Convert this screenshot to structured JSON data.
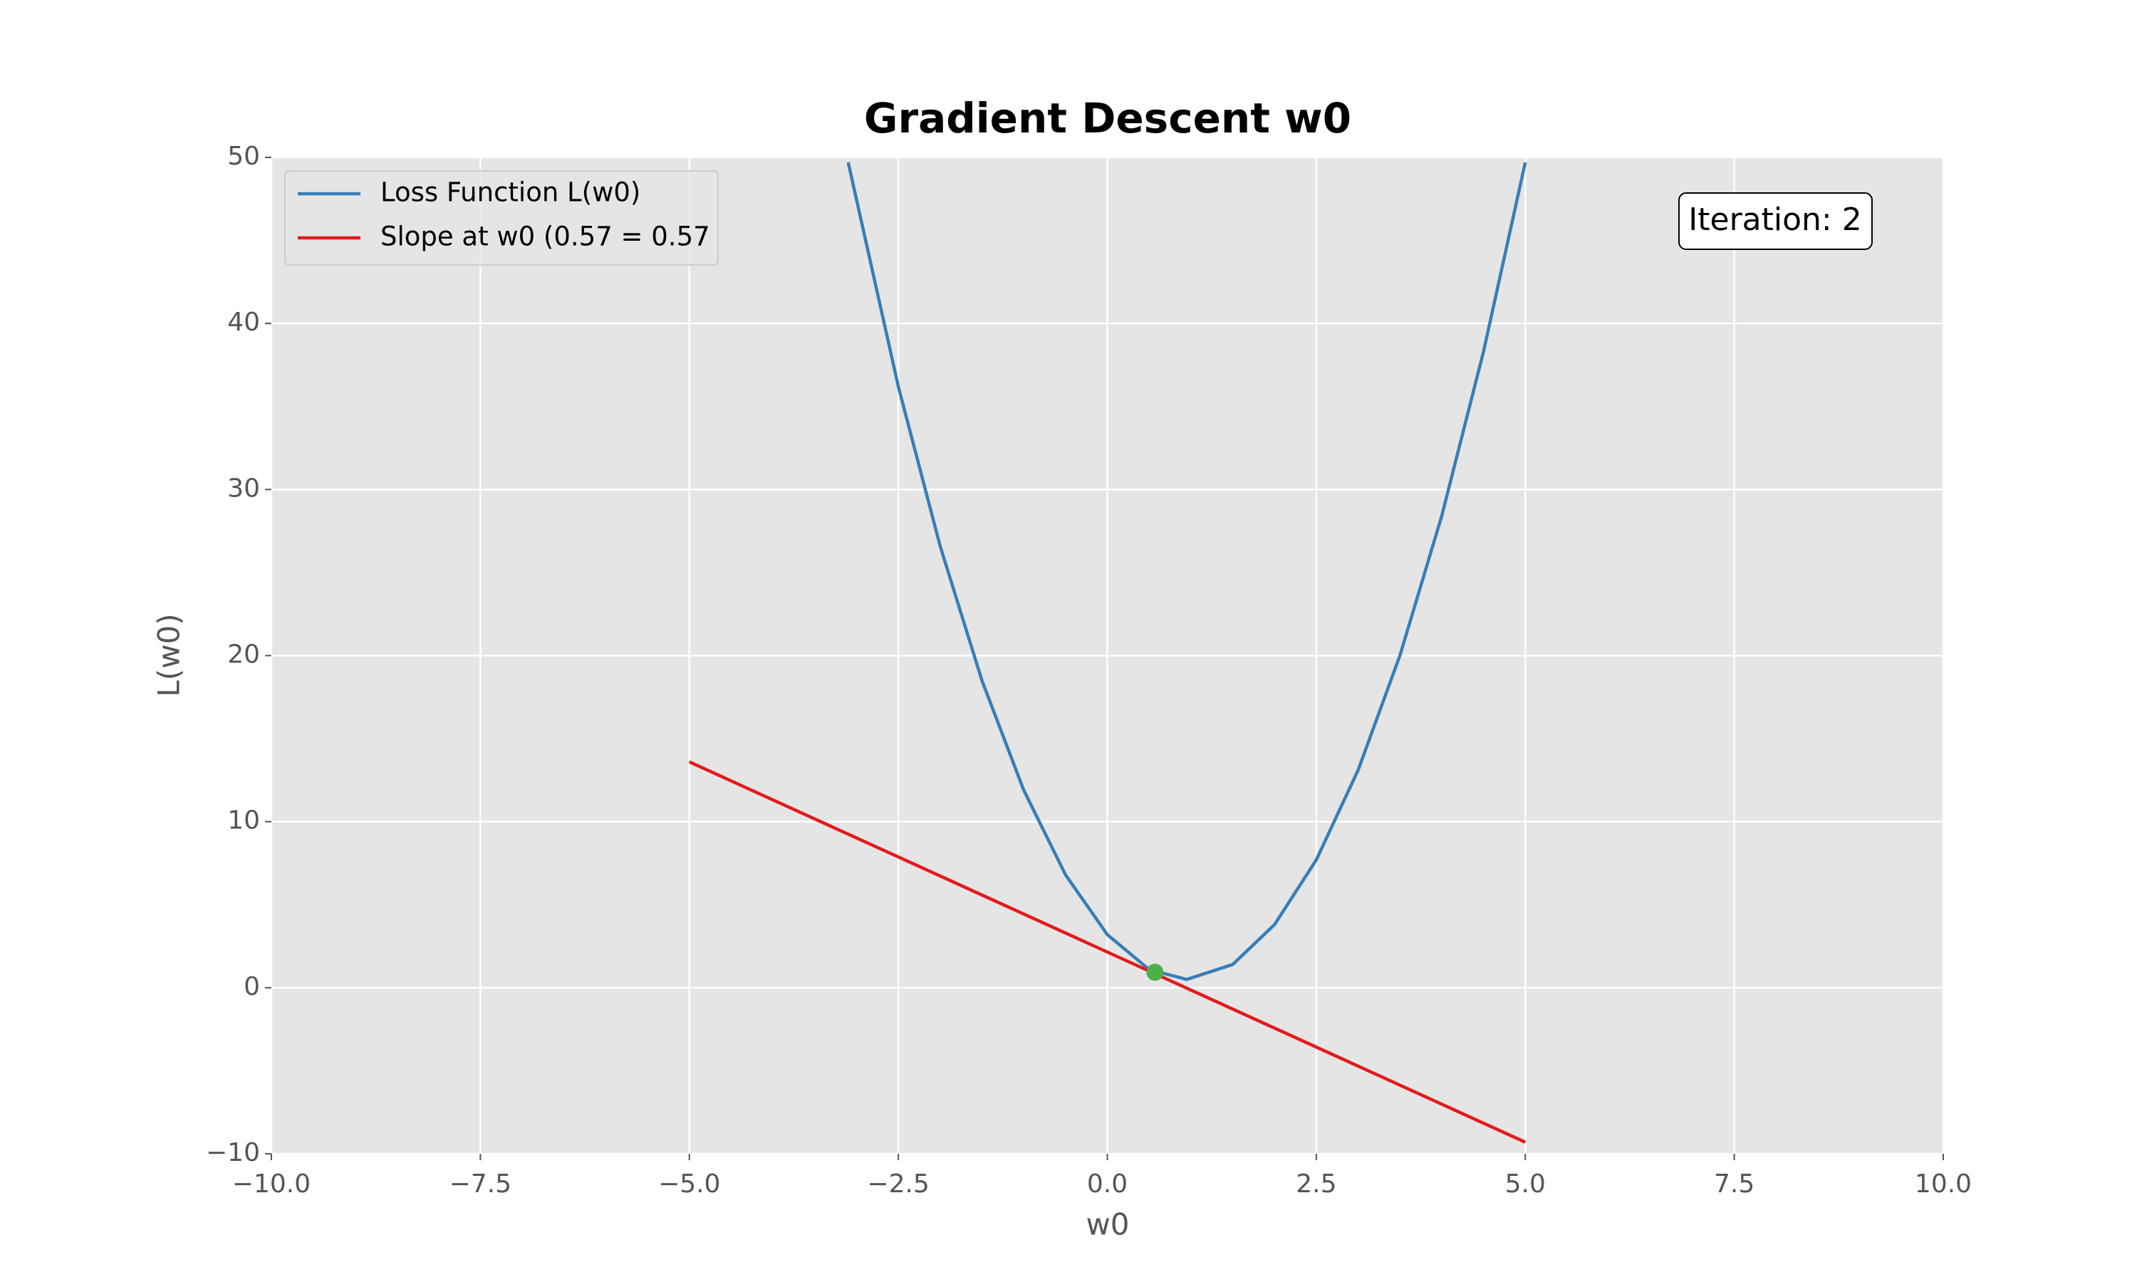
{
  "chart_data": {
    "type": "line",
    "title": "Gradient Descent w0",
    "xlabel": "w0",
    "ylabel": "L(w0)",
    "annotation": "Iteration: 2",
    "xlim": [
      -10,
      10
    ],
    "ylim": [
      -10,
      50
    ],
    "xticks": [
      {
        "value": -10,
        "label": "−10.0"
      },
      {
        "value": -7.5,
        "label": "−7.5"
      },
      {
        "value": -5,
        "label": "−5.0"
      },
      {
        "value": -2.5,
        "label": "−2.5"
      },
      {
        "value": 0,
        "label": "0.0"
      },
      {
        "value": 2.5,
        "label": "2.5"
      },
      {
        "value": 5,
        "label": "5.0"
      },
      {
        "value": 7.5,
        "label": "7.5"
      },
      {
        "value": 10,
        "label": "10.0"
      }
    ],
    "yticks": [
      {
        "value": -10,
        "label": "−10"
      },
      0,
      10,
      20,
      30,
      40,
      50
    ],
    "grid": true,
    "legend": "upper left",
    "series": [
      {
        "name": "Loss Function L(w0)",
        "color": "#377eb8",
        "x": [
          -3.1,
          -2.5,
          -2,
          -1.5,
          -1,
          -0.5,
          0,
          0.5,
          0.95,
          1.5,
          2,
          2.5,
          3,
          3.5,
          4,
          4.5,
          5
        ],
        "values": [
          49.7,
          36.2,
          26.6,
          18.5,
          11.9,
          6.8,
          3.2,
          1.1,
          0.5,
          1.4,
          3.8,
          7.7,
          13.1,
          20.0,
          28.4,
          38.3,
          49.7
        ]
      },
      {
        "name": "Slope at w0 (0.57 = 0.57",
        "color": "#e41a1c",
        "x": [
          -5,
          5
        ],
        "values": [
          13.6,
          -9.3
        ]
      },
      {
        "type": "scatter",
        "color": "#4daf4a",
        "x": [
          0.57
        ],
        "values": [
          0.93
        ]
      }
    ]
  }
}
